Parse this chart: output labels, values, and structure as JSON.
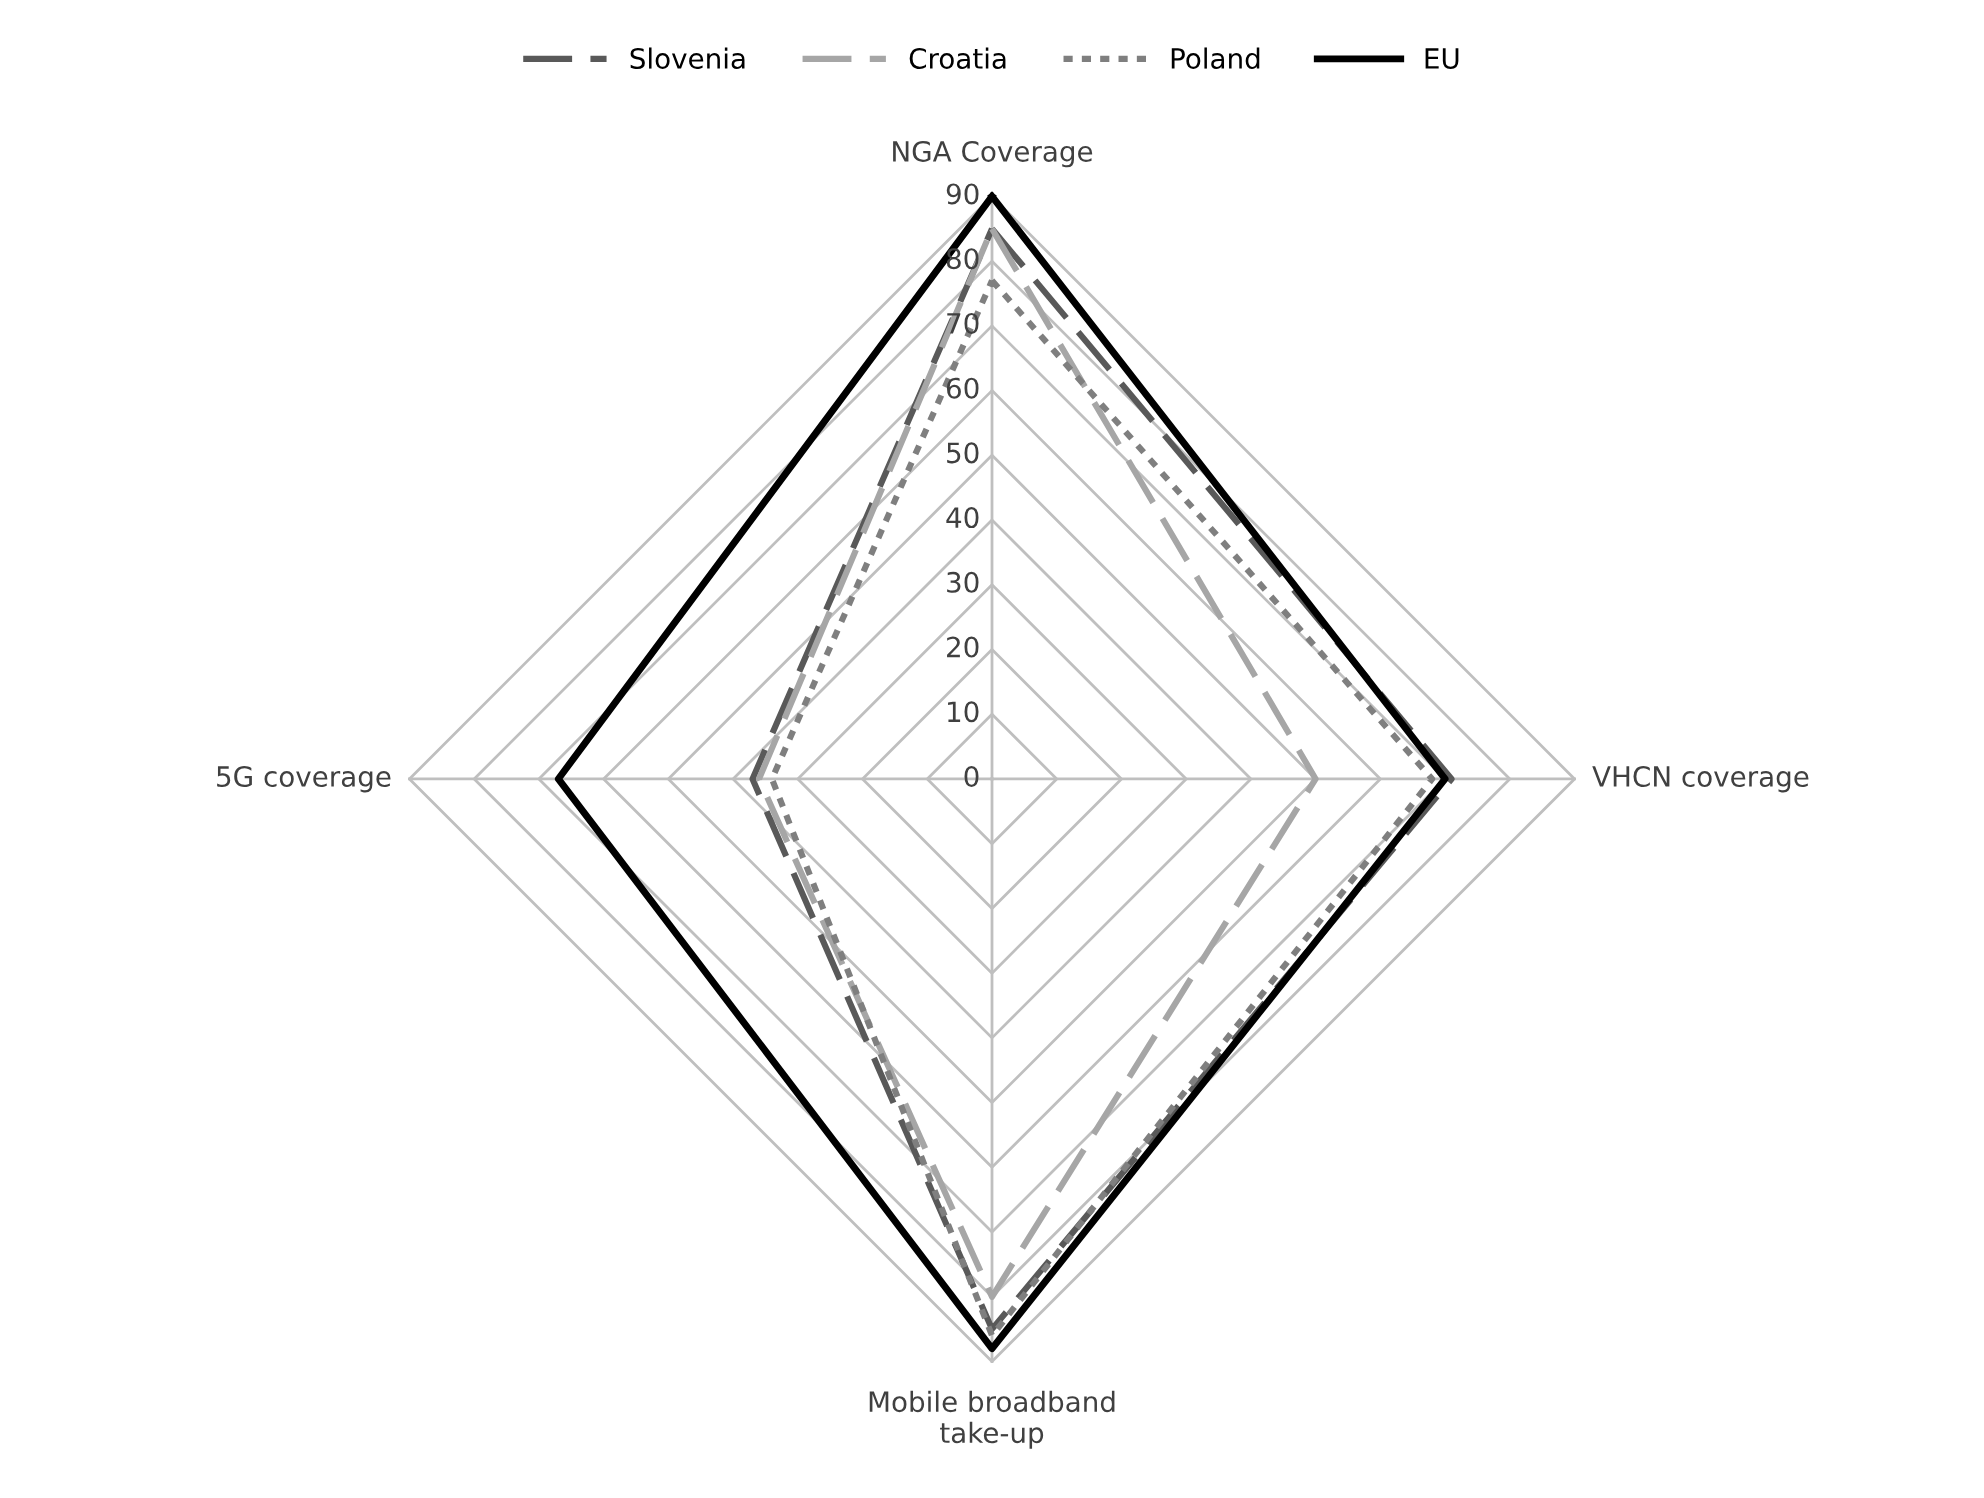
{
  "chart_data": {
    "type": "radar",
    "categories": [
      "NGA Coverage",
      "VHCN coverage",
      "Mobile broadband\ntake-up",
      "5G coverage"
    ],
    "ylim": [
      0,
      90
    ],
    "yticks": [
      0,
      10,
      20,
      30,
      40,
      50,
      60,
      70,
      80,
      90
    ],
    "grid": true,
    "legend": "top",
    "series": [
      {
        "name": "Slovenia",
        "color": "#595959",
        "line_style": "dashed",
        "values": [
          85,
          71,
          85,
          37
        ]
      },
      {
        "name": "Croatia",
        "color": "#a6a6a6",
        "line_style": "dashed",
        "values": [
          85,
          50,
          80,
          36
        ]
      },
      {
        "name": "Poland",
        "color": "#7f7f7f",
        "line_style": "dotted",
        "values": [
          77,
          68,
          86,
          34
        ]
      },
      {
        "name": "EU",
        "color": "#000000",
        "line_style": "solid",
        "values": [
          90,
          70,
          88,
          67
        ]
      }
    ]
  }
}
